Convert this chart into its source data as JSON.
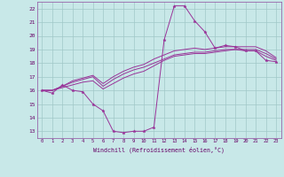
{
  "xlabel": "Windchill (Refroidissement éolien,°C)",
  "xlim": [
    -0.5,
    23.5
  ],
  "ylim": [
    12.5,
    22.5
  ],
  "yticks": [
    13,
    14,
    15,
    16,
    17,
    18,
    19,
    20,
    21,
    22
  ],
  "xticks": [
    0,
    1,
    2,
    3,
    4,
    5,
    6,
    7,
    8,
    9,
    10,
    11,
    12,
    13,
    14,
    15,
    16,
    17,
    18,
    19,
    20,
    21,
    22,
    23
  ],
  "bg_color": "#c8e8e8",
  "grid_color": "#a0c8c8",
  "line_color": "#993399",
  "line1": [
    16.0,
    15.8,
    16.4,
    16.0,
    15.9,
    15.0,
    14.5,
    13.0,
    12.9,
    13.0,
    13.0,
    13.3,
    19.7,
    22.2,
    22.2,
    21.1,
    20.3,
    19.1,
    19.3,
    19.2,
    18.9,
    18.9,
    18.2,
    18.1
  ],
  "line2": [
    16.0,
    16.0,
    16.2,
    16.4,
    16.6,
    16.7,
    16.1,
    16.5,
    16.9,
    17.2,
    17.4,
    17.8,
    18.2,
    18.5,
    18.6,
    18.7,
    18.7,
    18.8,
    18.9,
    19.0,
    18.9,
    18.9,
    18.5,
    18.2
  ],
  "line3": [
    16.0,
    16.0,
    16.3,
    16.6,
    16.8,
    17.0,
    16.3,
    16.8,
    17.2,
    17.5,
    17.7,
    18.0,
    18.3,
    18.6,
    18.7,
    18.8,
    18.8,
    18.9,
    19.0,
    19.0,
    19.0,
    19.0,
    18.7,
    18.3
  ],
  "line4": [
    16.0,
    16.0,
    16.3,
    16.7,
    16.9,
    17.1,
    16.5,
    17.0,
    17.4,
    17.7,
    17.9,
    18.3,
    18.6,
    18.9,
    19.0,
    19.1,
    19.0,
    19.1,
    19.2,
    19.2,
    19.2,
    19.2,
    18.9,
    18.4
  ]
}
